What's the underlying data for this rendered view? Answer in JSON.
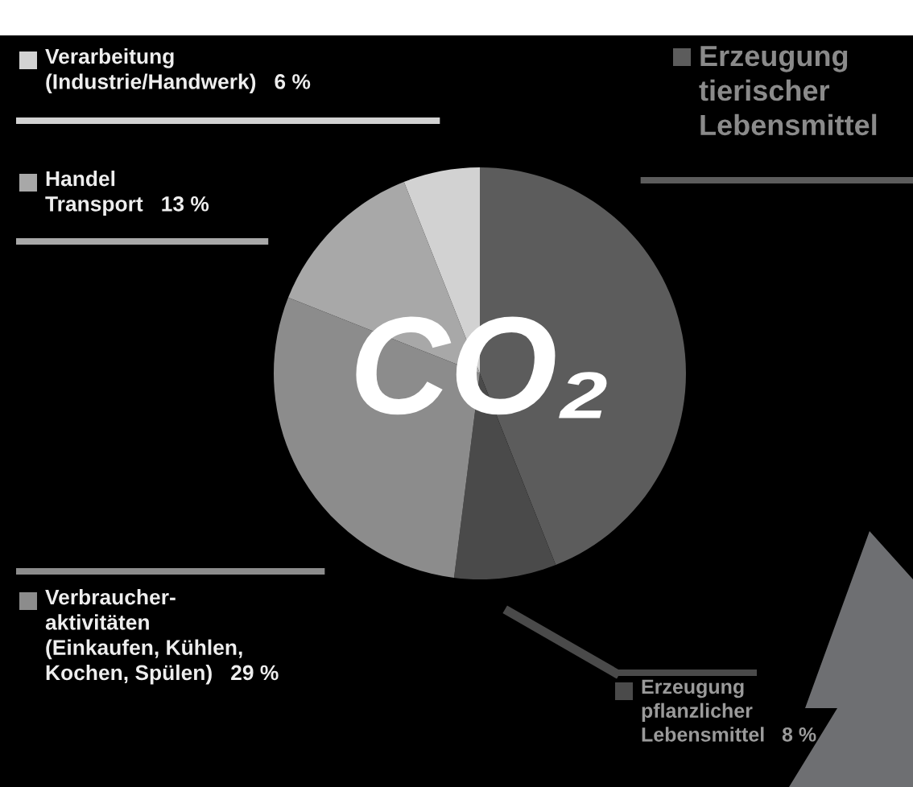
{
  "chart_data": {
    "type": "pie",
    "categories": [
      "Erzeugung\ntierischer\nLebensmittel",
      "Erzeugung\npflanzlicher\nLebensmittel",
      "Verbraucher-\naktivitäten\n(Einkaufen, Kühlen,\nKochen, Spülen)",
      "Handel\nTransport",
      "Verarbeitung\n(Industrie/Handwerk)"
    ],
    "values": [
      44,
      8,
      29,
      13,
      6
    ],
    "value_labels": [
      null,
      "8 %",
      "29 %",
      "13 %",
      "6 %"
    ],
    "colors": [
      "#5c5c5c",
      "#4a4a4a",
      "#8c8c8c",
      "#a8a8a8",
      "#d2d2d2"
    ],
    "legend": "left",
    "annotations": [
      "CO₂"
    ]
  }
}
